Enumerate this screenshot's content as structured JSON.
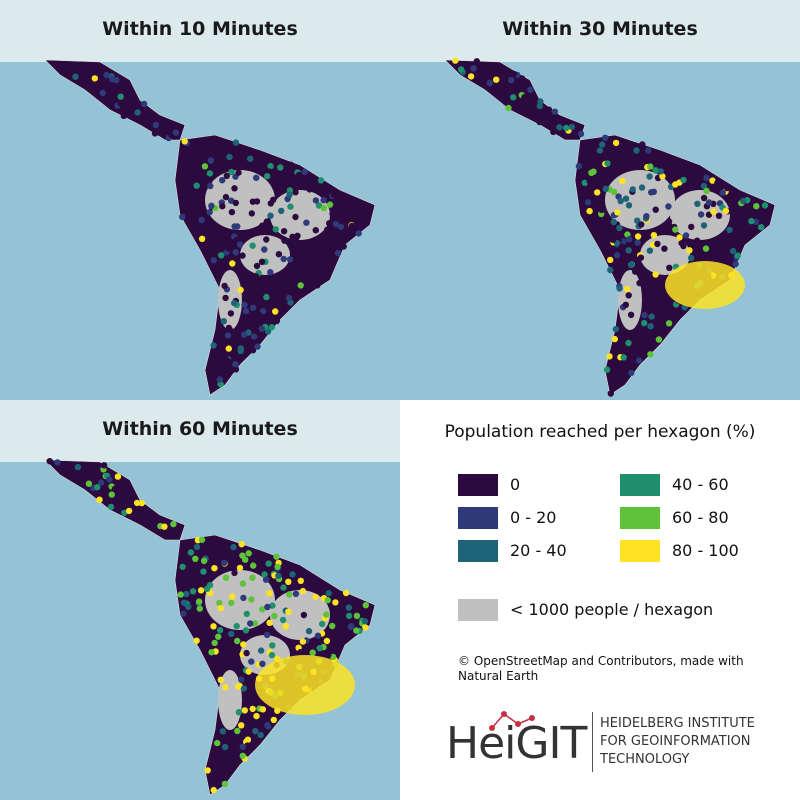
{
  "panels": [
    {
      "title": "Within 10 Minutes"
    },
    {
      "title": "Within 30 Minutes"
    },
    {
      "title": "Within 60 Minutes"
    }
  ],
  "legend": {
    "title": "Population reached per hexagon (%)",
    "items": [
      {
        "label": "0",
        "color": "#2c0a3f"
      },
      {
        "label": "0 - 20",
        "color": "#2e3a7a"
      },
      {
        "label": "20 - 40",
        "color": "#1e6378"
      },
      {
        "label": "40 - 60",
        "color": "#1f8f6e"
      },
      {
        "label": "60 - 80",
        "color": "#5ec23a"
      },
      {
        "label": "80 - 100",
        "color": "#fde324"
      }
    ],
    "no_data": {
      "label": "< 1000 people / hexagon",
      "color": "#c0c0c0"
    }
  },
  "attribution": "© OpenStreetMap and Contributors, made with Natural Earth",
  "logo": {
    "name": "HeiGIT",
    "lines": [
      "HEIDELBERG INSTITUTE",
      "FOR GEOINFORMATION",
      "TECHNOLOGY"
    ]
  }
}
